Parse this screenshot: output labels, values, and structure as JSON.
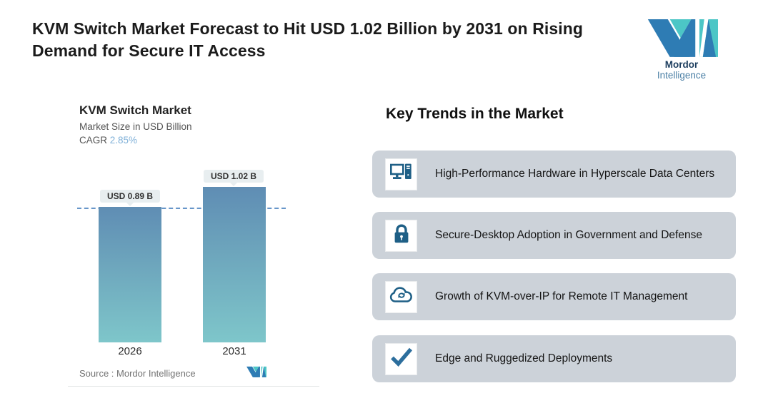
{
  "page": {
    "title": "KVM Switch Market Forecast to Hit USD 1.02 Billion by 2031 on Rising Demand for Secure IT Access"
  },
  "brand": {
    "name_bold": "Mordor",
    "name_regular": " Intelligence",
    "colors": {
      "teal": "#4cc6c6",
      "blue": "#2e7cb4",
      "navy": "#1c3d5e",
      "steel": "#4a7fa5"
    }
  },
  "chart": {
    "title": "KVM Switch Market",
    "subtitle": "Market Size in USD Billion",
    "cagr_label": "CAGR ",
    "cagr_value": "2.85%",
    "source_text": "Source :  Mordor Intelligence"
  },
  "chart_data": {
    "type": "bar",
    "categories": [
      "2026",
      "2031"
    ],
    "values": [
      0.89,
      1.02
    ],
    "value_labels": [
      "USD 0.89 B",
      "USD 1.02 B"
    ],
    "title": "KVM Switch Market",
    "ylabel": "Market Size in USD Billion",
    "cagr": "2.85%",
    "ylim": [
      0,
      1.1
    ],
    "bar_gradient_top": "#5f8db4",
    "bar_gradient_bottom": "#7ec6ca",
    "reference_line": {
      "value": 0.89,
      "style": "dashed",
      "color": "#4d84c0"
    },
    "legend": "none",
    "grid": "off"
  },
  "trends": {
    "heading": "Key Trends in the Market",
    "card_bg": "#ccd2d9",
    "icon_color": "#1e5f86",
    "items": [
      {
        "icon": "desktop-computer-icon",
        "text": "High-Performance Hardware in Hyperscale Data Centers"
      },
      {
        "icon": "padlock-icon",
        "text": "Secure-Desktop Adoption in Government and Defense"
      },
      {
        "icon": "cloud-sync-icon",
        "text": "Growth of KVM-over-IP for Remote IT Management"
      },
      {
        "icon": "checkmark-icon",
        "text": "Edge and Ruggedized Deployments"
      }
    ]
  }
}
